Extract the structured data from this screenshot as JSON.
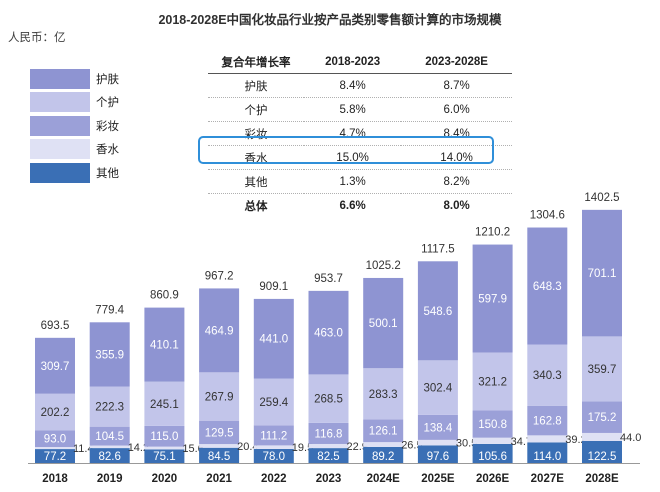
{
  "title": "2018-2028E中国化妆品行业按产品类别零售额计算的市场规模",
  "unit": "人民币：亿",
  "legend": [
    {
      "label": "护肤",
      "color": "#8e94d2"
    },
    {
      "label": "个护",
      "color": "#c2c5ea"
    },
    {
      "label": "彩妆",
      "color": "#9ba0d8"
    },
    {
      "label": "香水",
      "color": "#dfe1f4"
    },
    {
      "label": "其他",
      "color": "#3a6fb5"
    }
  ],
  "table": {
    "headers": [
      "复合年增长率",
      "2018-2023",
      "2023-2028E"
    ],
    "rows": [
      {
        "name": "护肤",
        "cagr1": "8.4%",
        "cagr2": "8.7%"
      },
      {
        "name": "个护",
        "cagr1": "5.8%",
        "cagr2": "6.0%"
      },
      {
        "name": "彩妆",
        "cagr1": "4.7%",
        "cagr2": "8.4%"
      },
      {
        "name": "香水",
        "cagr1": "15.0%",
        "cagr2": "14.0%"
      },
      {
        "name": "其他",
        "cagr1": "1.3%",
        "cagr2": "8.2%"
      },
      {
        "name": "总体",
        "cagr1": "6.6%",
        "cagr2": "8.0%"
      }
    ]
  },
  "chart_data": {
    "type": "bar",
    "stacked": true,
    "categories": [
      "2018",
      "2019",
      "2020",
      "2021",
      "2022",
      "2023",
      "2024E",
      "2025E",
      "2026E",
      "2027E",
      "2028E"
    ],
    "totals": [
      "693.5",
      "779.4",
      "860.9",
      "967.2",
      "909.1",
      "953.7",
      "1025.2",
      "1117.5",
      "1210.2",
      "1304.6",
      "1402.5"
    ],
    "series": [
      {
        "name": "其他",
        "color": "#3a6fb5",
        "values": [
          "77.2",
          "82.6",
          "75.1",
          "84.5",
          "78.0",
          "82.5",
          "89.2",
          "97.6",
          "105.6",
          "114.0",
          "122.5"
        ]
      },
      {
        "name": "香水",
        "color": "#dfe1f4",
        "values": [
          "11.4",
          "14.2",
          "15.6",
          "20.4",
          "19.5",
          "22.9",
          "26.5",
          "30.5",
          "34.7",
          "39.2",
          "44.0"
        ]
      },
      {
        "name": "彩妆",
        "color": "#9ba0d8",
        "values": [
          "93.0",
          "104.5",
          "115.0",
          "129.5",
          "111.2",
          "116.8",
          "126.1",
          "138.4",
          "150.8",
          "162.8",
          "175.2"
        ]
      },
      {
        "name": "个护",
        "color": "#c2c5ea",
        "values": [
          "202.2",
          "222.3",
          "245.1",
          "267.9",
          "259.4",
          "268.5",
          "283.3",
          "302.4",
          "321.2",
          "340.3",
          "359.7"
        ]
      },
      {
        "name": "护肤",
        "color": "#8e94d2",
        "values": [
          "309.7",
          "355.9",
          "410.1",
          "464.9",
          "441.0",
          "463.0",
          "500.1",
          "548.6",
          "597.9",
          "648.3",
          "701.1"
        ]
      }
    ]
  }
}
